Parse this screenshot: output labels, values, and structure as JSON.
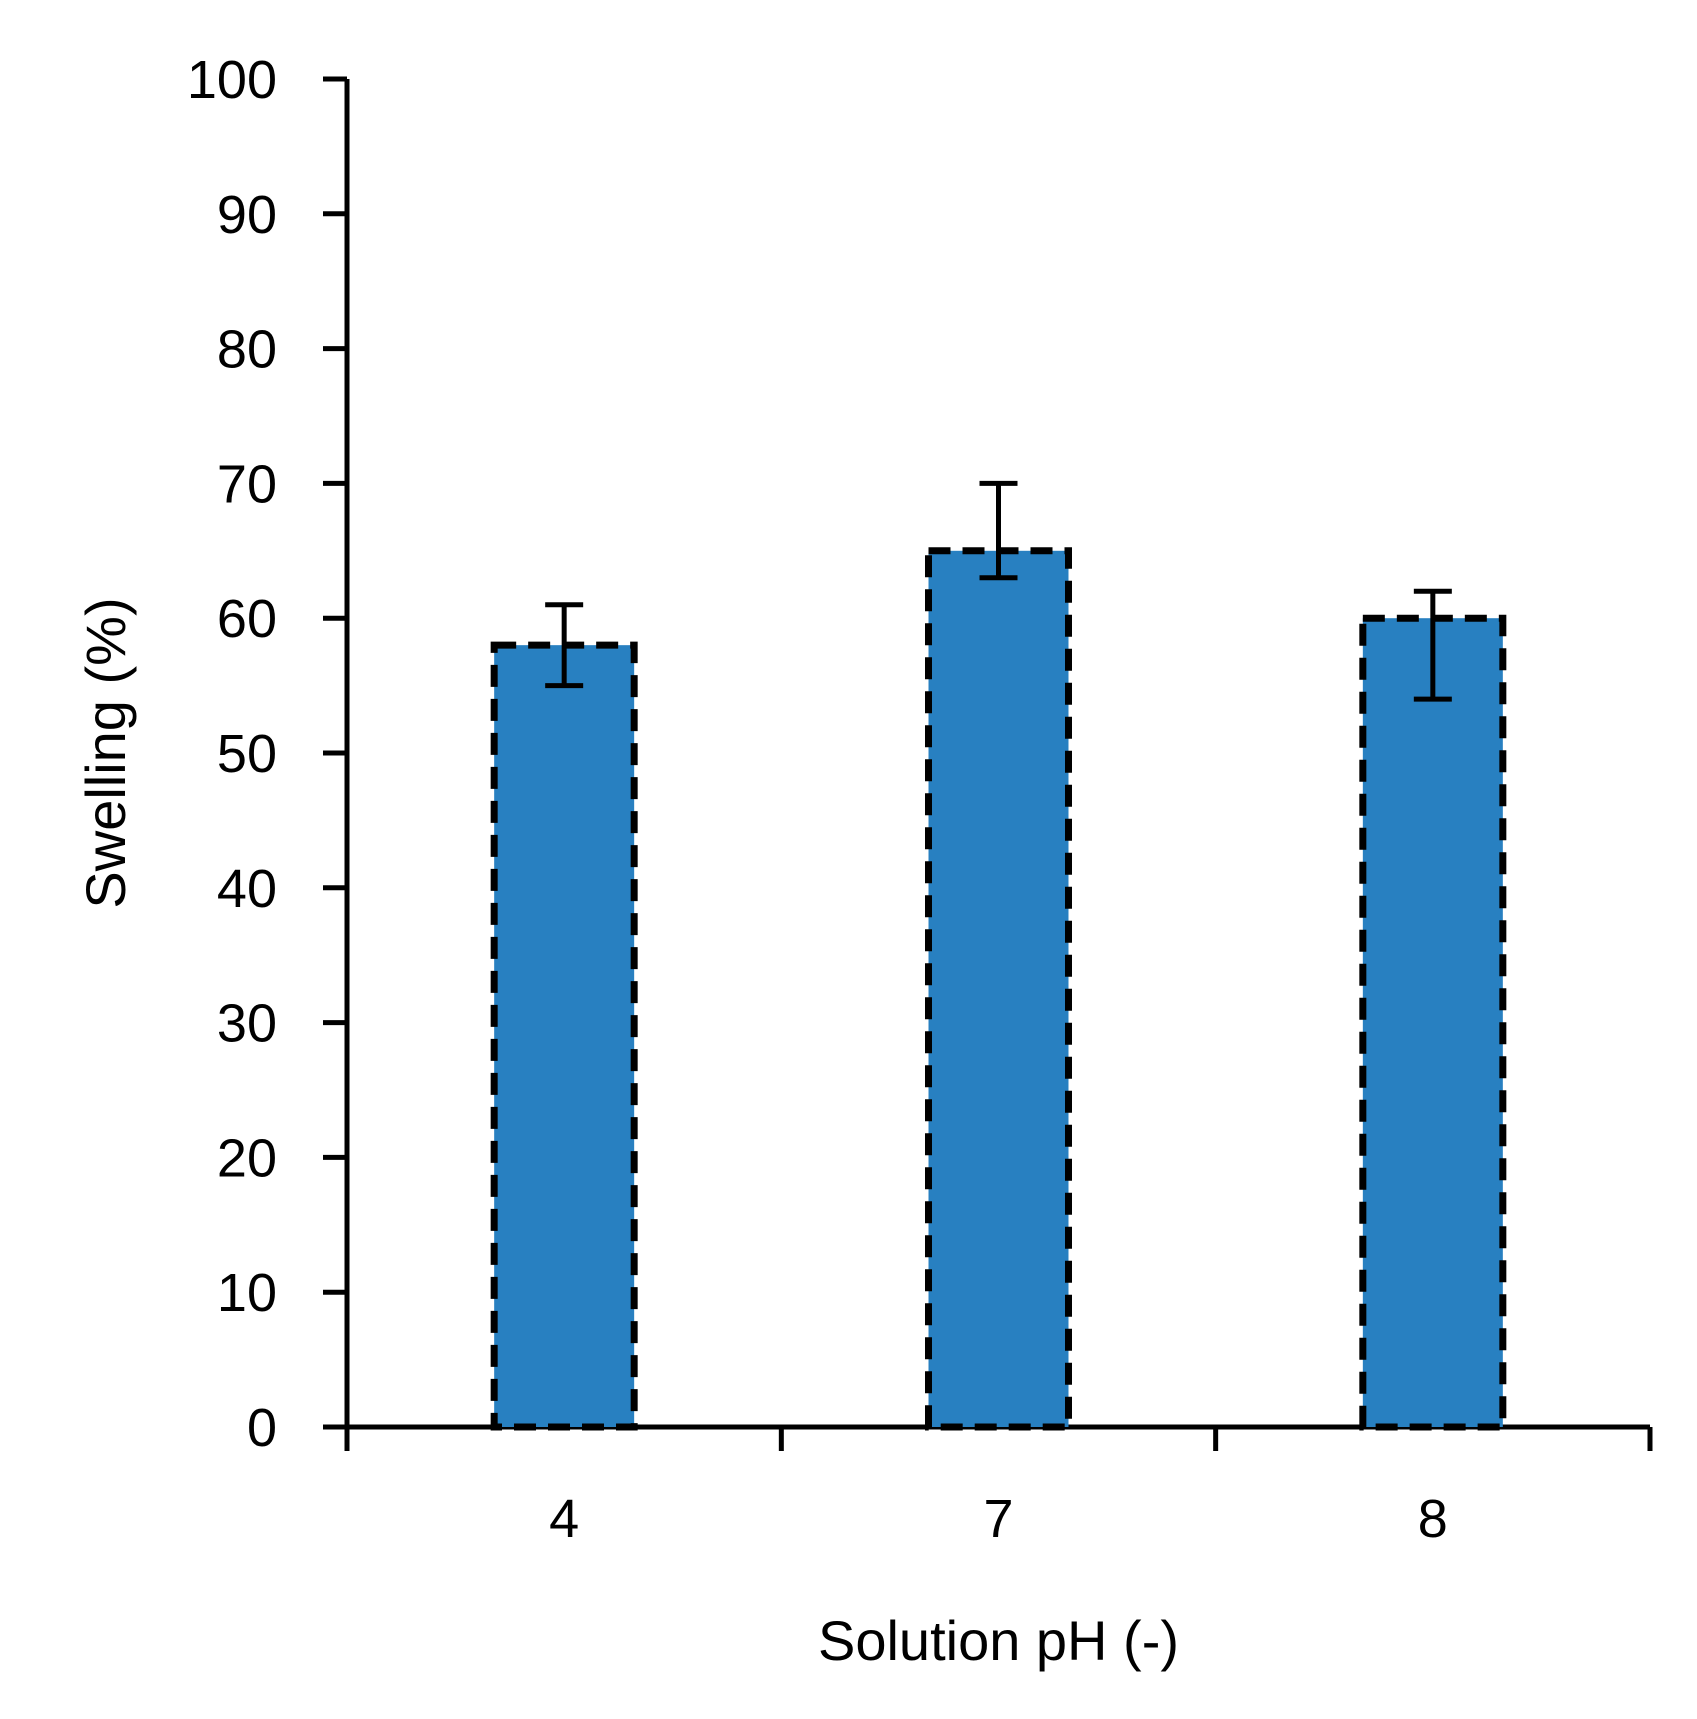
{
  "chart_data": {
    "type": "bar",
    "title": "",
    "xlabel": "Solution pH (-)",
    "ylabel": "Swelling (%)",
    "categories": [
      "4",
      "7",
      "8"
    ],
    "values": [
      58,
      65,
      60
    ],
    "error_low": [
      55,
      63,
      54
    ],
    "error_high": [
      61,
      70,
      62
    ],
    "ylim": [
      0,
      100
    ],
    "yticks": [
      0,
      10,
      20,
      30,
      40,
      50,
      60,
      70,
      80,
      90,
      100
    ],
    "bar_color": "#2880C1",
    "bar_outline": "dashed black",
    "grid": false,
    "legend": "none"
  }
}
